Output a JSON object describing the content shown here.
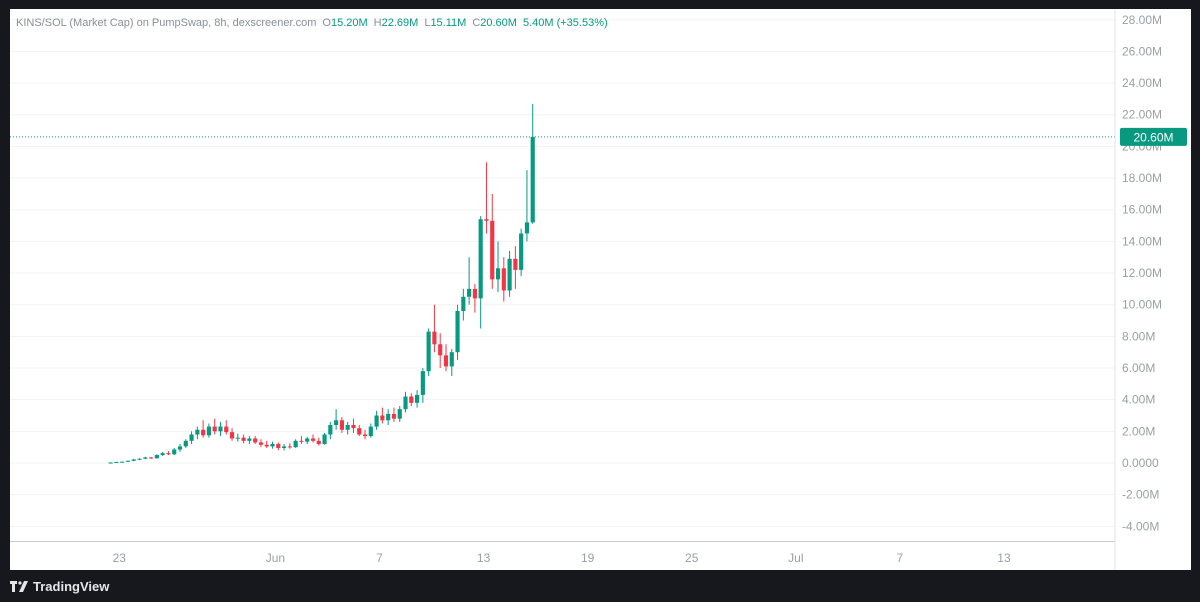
{
  "legend": {
    "symbol": "KINS/SOL (Market Cap) on PumpSwap, 8h, dexscreener.com",
    "o_key": "O",
    "o_val": "15.20M",
    "h_key": "H",
    "h_val": "22.69M",
    "l_key": "L",
    "l_val": "15.11M",
    "c_key": "C",
    "c_val": "20.60M",
    "change": "5.40M (+35.53%)"
  },
  "last_price_label": "20.60M",
  "brand": {
    "name": "TradingView"
  },
  "colors": {
    "up": "#089981",
    "down": "#f23645",
    "axis_text": "#9aa0a6",
    "grid": "#f2f3f5"
  },
  "chart_data": {
    "type": "candlestick",
    "interval": "8h",
    "y_unit": "market cap (USD)",
    "ylim": [
      -5000000,
      28500000
    ],
    "y_ticks": [
      "28.00M",
      "26.00M",
      "24.00M",
      "22.00M",
      "20.00M",
      "18.00M",
      "16.00M",
      "14.00M",
      "12.00M",
      "10.00M",
      "8.00M",
      "6.00M",
      "4.00M",
      "2.00M",
      "0.0000",
      "-2.00M",
      "-4.00M"
    ],
    "y_tick_values": [
      28,
      26,
      24,
      22,
      20,
      18,
      16,
      14,
      12,
      10,
      8,
      6,
      4,
      2,
      0,
      -2,
      -4
    ],
    "x_ticks": [
      {
        "label": "23",
        "day": 0
      },
      {
        "label": "Jun",
        "day": 9
      },
      {
        "label": "7",
        "day": 15
      },
      {
        "label": "13",
        "day": 21
      },
      {
        "label": "19",
        "day": 27
      },
      {
        "label": "25",
        "day": 33
      },
      {
        "label": "Jul",
        "day": 39
      },
      {
        "label": "7",
        "day": 45
      },
      {
        "label": "13",
        "day": 51
      }
    ],
    "x_range_days": [
      -6.3,
      57.4
    ],
    "first_candle_day": -0.5,
    "candles_per_day": 3,
    "last_close": 20.6,
    "candles": [
      [
        0.0,
        0.05,
        0.0,
        0.03
      ],
      [
        0.03,
        0.08,
        0.02,
        0.06
      ],
      [
        0.06,
        0.1,
        0.04,
        0.08
      ],
      [
        0.08,
        0.16,
        0.07,
        0.14
      ],
      [
        0.14,
        0.26,
        0.12,
        0.22
      ],
      [
        0.22,
        0.3,
        0.18,
        0.27
      ],
      [
        0.27,
        0.4,
        0.24,
        0.35
      ],
      [
        0.35,
        0.38,
        0.26,
        0.3
      ],
      [
        0.3,
        0.55,
        0.28,
        0.5
      ],
      [
        0.5,
        0.7,
        0.45,
        0.62
      ],
      [
        0.62,
        0.75,
        0.5,
        0.55
      ],
      [
        0.55,
        0.95,
        0.5,
        0.85
      ],
      [
        0.85,
        1.2,
        0.7,
        1.05
      ],
      [
        1.05,
        1.5,
        0.95,
        1.4
      ],
      [
        1.4,
        2.0,
        1.2,
        1.8
      ],
      [
        1.8,
        2.3,
        1.5,
        2.1
      ],
      [
        2.1,
        2.7,
        1.6,
        1.75
      ],
      [
        1.75,
        2.5,
        1.6,
        2.3
      ],
      [
        2.3,
        2.8,
        1.8,
        2.0
      ],
      [
        2.0,
        2.6,
        1.7,
        2.3
      ],
      [
        2.3,
        2.7,
        1.8,
        1.95
      ],
      [
        1.95,
        2.2,
        1.4,
        1.55
      ],
      [
        1.55,
        1.85,
        1.35,
        1.6
      ],
      [
        1.6,
        1.8,
        1.25,
        1.4
      ],
      [
        1.4,
        1.7,
        1.2,
        1.55
      ],
      [
        1.55,
        1.7,
        1.2,
        1.3
      ],
      [
        1.3,
        1.5,
        1.0,
        1.15
      ],
      [
        1.15,
        1.4,
        0.95,
        1.05
      ],
      [
        1.05,
        1.35,
        0.9,
        1.2
      ],
      [
        1.2,
        1.3,
        0.8,
        0.95
      ],
      [
        0.95,
        1.2,
        0.8,
        1.05
      ],
      [
        1.05,
        1.25,
        0.9,
        1.0
      ],
      [
        1.0,
        1.5,
        0.95,
        1.4
      ],
      [
        1.4,
        1.7,
        1.2,
        1.35
      ],
      [
        1.35,
        1.65,
        1.2,
        1.55
      ],
      [
        1.55,
        1.8,
        1.3,
        1.4
      ],
      [
        1.4,
        1.6,
        1.1,
        1.2
      ],
      [
        1.2,
        1.9,
        1.15,
        1.8
      ],
      [
        1.8,
        2.6,
        1.5,
        2.4
      ],
      [
        2.4,
        3.4,
        2.1,
        2.7
      ],
      [
        2.7,
        2.9,
        1.9,
        2.1
      ],
      [
        2.1,
        2.6,
        1.8,
        2.4
      ],
      [
        2.4,
        2.8,
        1.9,
        2.2
      ],
      [
        2.2,
        2.4,
        1.7,
        1.8
      ],
      [
        1.8,
        2.1,
        1.5,
        1.7
      ],
      [
        1.7,
        2.5,
        1.6,
        2.3
      ],
      [
        2.3,
        3.3,
        2.1,
        3.0
      ],
      [
        3.0,
        3.5,
        2.5,
        2.7
      ],
      [
        2.7,
        3.4,
        2.4,
        3.1
      ],
      [
        3.1,
        3.5,
        2.6,
        2.8
      ],
      [
        2.8,
        3.6,
        2.6,
        3.4
      ],
      [
        3.4,
        4.5,
        3.2,
        4.2
      ],
      [
        4.2,
        4.4,
        3.6,
        3.8
      ],
      [
        3.8,
        4.6,
        3.5,
        4.3
      ],
      [
        4.3,
        6.0,
        3.8,
        5.8
      ],
      [
        5.8,
        8.5,
        5.5,
        8.3
      ],
      [
        8.3,
        10.0,
        7.0,
        7.5
      ],
      [
        7.5,
        8.2,
        6.0,
        6.8
      ],
      [
        6.8,
        7.5,
        5.8,
        6.1
      ],
      [
        6.1,
        7.2,
        5.5,
        7.0
      ],
      [
        7.0,
        10.0,
        6.5,
        9.6
      ],
      [
        9.6,
        11.0,
        9.0,
        10.5
      ],
      [
        10.5,
        13.0,
        10.0,
        11.0
      ],
      [
        11.0,
        11.3,
        9.5,
        10.4
      ],
      [
        10.4,
        15.6,
        8.5,
        15.4
      ],
      [
        15.4,
        19.0,
        14.5,
        15.3
      ],
      [
        15.3,
        17.0,
        11.0,
        11.6
      ],
      [
        11.6,
        14.0,
        10.8,
        12.3
      ],
      [
        12.3,
        13.0,
        10.2,
        10.9
      ],
      [
        10.9,
        13.4,
        10.5,
        12.9
      ],
      [
        12.9,
        13.7,
        11.0,
        12.2
      ],
      [
        12.2,
        14.8,
        11.8,
        14.5
      ],
      [
        14.5,
        18.5,
        14.0,
        15.2
      ],
      [
        15.2,
        22.69,
        15.11,
        20.6
      ]
    ]
  }
}
